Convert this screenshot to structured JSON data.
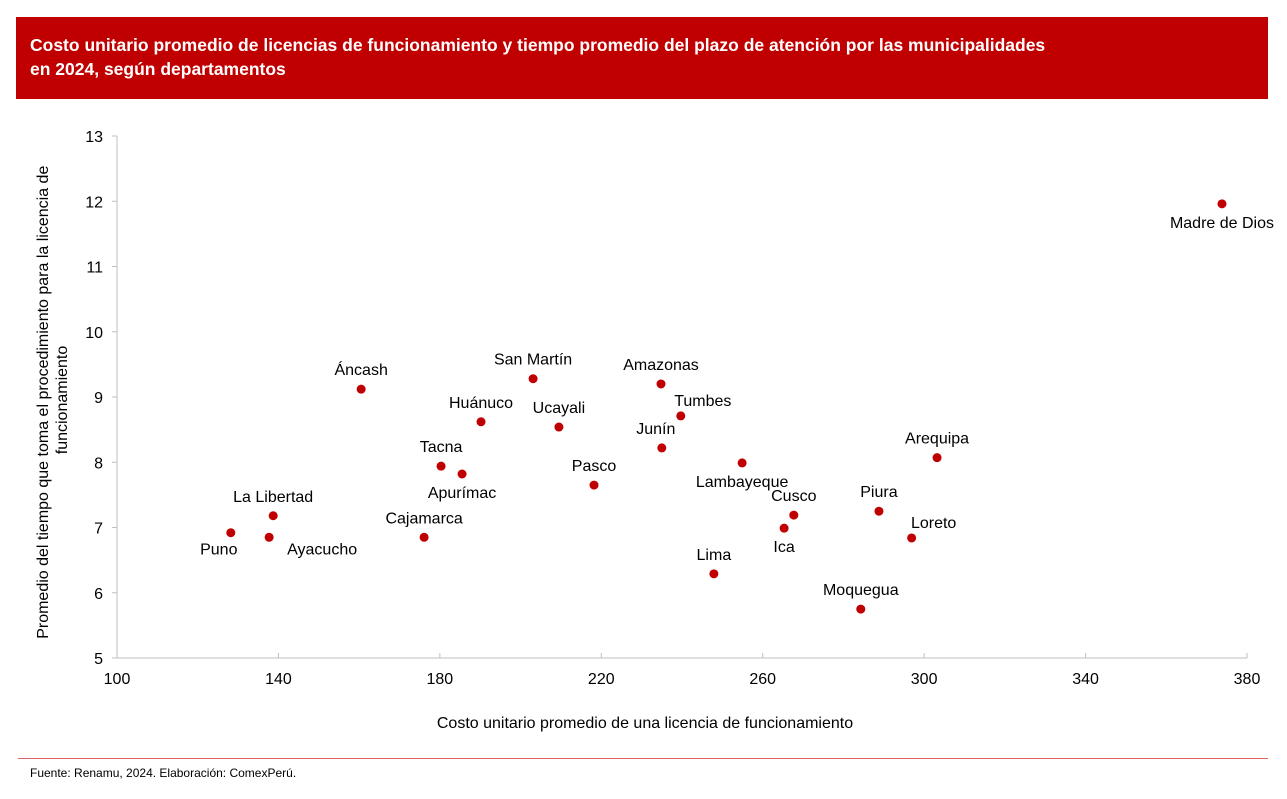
{
  "header": {
    "title_line1": "Costo unitario promedio de licencias de funcionamiento y tiempo promedio del plazo de atención por las municipalidades",
    "title_line2": "en 2024, según departamentos",
    "background_color": "#c00000"
  },
  "footer": {
    "source": "Fuente: Renamu, 2024. Elaboración: ComexPerú."
  },
  "chart_data": {
    "type": "scatter",
    "title": "Costo unitario promedio de licencias de funcionamiento y tiempo promedio del plazo de atención por las municipalidades en 2024, según departamentos",
    "xlabel": "Costo unitario promedio de una licencia de funcionamiento",
    "ylabel_lines": [
      "Promedio del tiempo que toma el procedimiento para la licencia de",
      "funcionamiento"
    ],
    "xlim": [
      100,
      380
    ],
    "ylim": [
      5,
      13
    ],
    "xticks": [
      100,
      140,
      180,
      220,
      260,
      300,
      340,
      380
    ],
    "yticks": [
      5,
      6,
      7,
      8,
      9,
      10,
      11,
      12,
      13
    ],
    "grid": false,
    "marker_color": "#c00000",
    "points": [
      {
        "label": "Puno",
        "x": 128.2,
        "y": 6.92,
        "label_pos": "below-left"
      },
      {
        "label": "La Libertad",
        "x": 138.7,
        "y": 7.18,
        "label_pos": "above"
      },
      {
        "label": "Ayacucho",
        "x": 137.7,
        "y": 6.85,
        "label_pos": "below-right"
      },
      {
        "label": "Áncash",
        "x": 160.5,
        "y": 9.12,
        "label_pos": "above"
      },
      {
        "label": "Cajamarca",
        "x": 176.1,
        "y": 6.85,
        "label_pos": "above"
      },
      {
        "label": "Tacna",
        "x": 180.3,
        "y": 7.94,
        "label_pos": "above"
      },
      {
        "label": "Apurímac",
        "x": 185.5,
        "y": 7.82,
        "label_pos": "below"
      },
      {
        "label": "Huánuco",
        "x": 190.2,
        "y": 8.62,
        "label_pos": "above"
      },
      {
        "label": "San Martín",
        "x": 203.1,
        "y": 9.28,
        "label_pos": "above"
      },
      {
        "label": "Ucayali",
        "x": 209.5,
        "y": 8.54,
        "label_pos": "above"
      },
      {
        "label": "Pasco",
        "x": 218.2,
        "y": 7.65,
        "label_pos": "above"
      },
      {
        "label": "Amazonas",
        "x": 234.8,
        "y": 9.2,
        "label_pos": "above"
      },
      {
        "label": "Junín",
        "x": 235.0,
        "y": 8.22,
        "label_pos": "above-left"
      },
      {
        "label": "Tumbes",
        "x": 239.7,
        "y": 8.71,
        "label_pos": "above-right"
      },
      {
        "label": "Lima",
        "x": 247.9,
        "y": 6.29,
        "label_pos": "above"
      },
      {
        "label": "Lambayeque",
        "x": 254.9,
        "y": 7.99,
        "label_pos": "below"
      },
      {
        "label": "Ica",
        "x": 265.3,
        "y": 6.99,
        "label_pos": "below"
      },
      {
        "label": "Cusco",
        "x": 267.7,
        "y": 7.19,
        "label_pos": "above"
      },
      {
        "label": "Moquegua",
        "x": 284.3,
        "y": 5.75,
        "label_pos": "above"
      },
      {
        "label": "Piura",
        "x": 288.8,
        "y": 7.25,
        "label_pos": "above"
      },
      {
        "label": "Loreto",
        "x": 296.9,
        "y": 6.84,
        "label_pos": "above-right"
      },
      {
        "label": "Arequipa",
        "x": 303.2,
        "y": 8.07,
        "label_pos": "above"
      },
      {
        "label": "Madre de Dios",
        "x": 373.8,
        "y": 11.96,
        "label_pos": "below"
      }
    ]
  }
}
